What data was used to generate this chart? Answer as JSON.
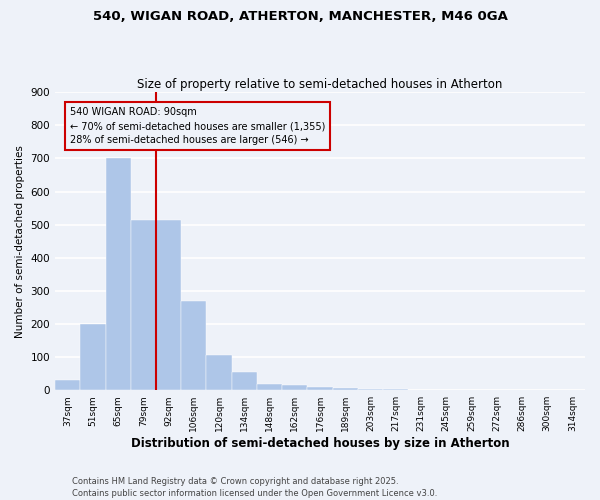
{
  "title_line1": "540, WIGAN ROAD, ATHERTON, MANCHESTER, M46 0GA",
  "title_line2": "Size of property relative to semi-detached houses in Atherton",
  "xlabel": "Distribution of semi-detached houses by size in Atherton",
  "ylabel": "Number of semi-detached properties",
  "categories": [
    "37sqm",
    "51sqm",
    "65sqm",
    "79sqm",
    "92sqm",
    "106sqm",
    "120sqm",
    "134sqm",
    "148sqm",
    "162sqm",
    "176sqm",
    "189sqm",
    "203sqm",
    "217sqm",
    "231sqm",
    "245sqm",
    "259sqm",
    "272sqm",
    "286sqm",
    "300sqm",
    "314sqm"
  ],
  "values": [
    30,
    200,
    700,
    515,
    515,
    270,
    105,
    55,
    20,
    15,
    10,
    8,
    5,
    3,
    2,
    2,
    1,
    1,
    1,
    0,
    0
  ],
  "bar_color": "#aec6e8",
  "bar_edge_color": "#aec6e8",
  "annotation_text_line1": "540 WIGAN ROAD: 90sqm",
  "annotation_text_line2": "← 70% of semi-detached houses are smaller (1,355)",
  "annotation_text_line3": "28% of semi-detached houses are larger (546) →",
  "vline_color": "#cc0000",
  "background_color": "#eef2f9",
  "grid_color": "#ffffff",
  "ylim": [
    0,
    900
  ],
  "yticks": [
    0,
    100,
    200,
    300,
    400,
    500,
    600,
    700,
    800,
    900
  ],
  "footnote_line1": "Contains HM Land Registry data © Crown copyright and database right 2025.",
  "footnote_line2": "Contains public sector information licensed under the Open Government Licence v3.0."
}
